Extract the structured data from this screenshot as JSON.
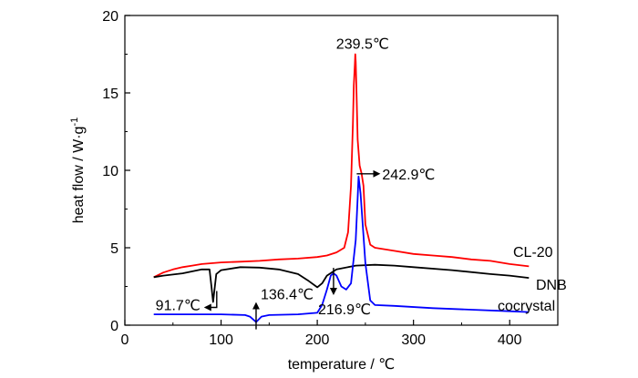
{
  "chart_data": {
    "type": "line",
    "xlabel": "temperature / ℃",
    "ylabel": "heat flow / W·g",
    "ylabel_sup": "-1",
    "xlim": [
      0,
      450
    ],
    "ylim": [
      0,
      20
    ],
    "xticks": [
      0,
      100,
      200,
      300,
      400
    ],
    "yticks": [
      0,
      5,
      10,
      15,
      20
    ],
    "grid": false,
    "series": [
      {
        "name": "CL-20",
        "color": "#ff0000",
        "x": [
          30,
          40,
          50,
          60,
          70,
          80,
          100,
          120,
          140,
          160,
          180,
          200,
          210,
          220,
          228,
          232,
          235,
          237,
          238,
          239,
          239.5,
          240,
          241,
          242,
          244,
          246,
          248,
          250,
          255,
          260,
          280,
          300,
          320,
          340,
          360,
          380,
          400,
          420
        ],
        "y": [
          3.1,
          3.4,
          3.6,
          3.75,
          3.85,
          3.95,
          4.05,
          4.1,
          4.15,
          4.25,
          4.3,
          4.4,
          4.5,
          4.7,
          5.0,
          6.0,
          9.0,
          13.0,
          15.5,
          16.8,
          17.5,
          17.0,
          14.5,
          12.0,
          10.3,
          9.8,
          9.0,
          6.5,
          5.2,
          5.0,
          4.8,
          4.6,
          4.5,
          4.4,
          4.25,
          4.15,
          3.95,
          3.8
        ]
      },
      {
        "name": "DNB",
        "color": "#000000",
        "x": [
          30,
          40,
          60,
          80,
          88,
          90,
          91.7,
          95,
          100,
          120,
          140,
          160,
          180,
          190,
          200,
          205,
          210,
          220,
          240,
          260,
          280,
          300,
          340,
          380,
          400,
          420
        ],
        "y": [
          3.1,
          3.2,
          3.35,
          3.6,
          3.6,
          2.5,
          1.5,
          3.3,
          3.55,
          3.75,
          3.72,
          3.6,
          3.3,
          2.9,
          2.45,
          2.7,
          3.2,
          3.6,
          3.85,
          3.9,
          3.85,
          3.75,
          3.55,
          3.3,
          3.2,
          3.05
        ]
      },
      {
        "name": "cocrystal",
        "color": "#0000ff",
        "x": [
          30,
          60,
          100,
          125,
          130,
          136.4,
          142,
          150,
          180,
          200,
          205,
          210,
          214,
          216.9,
          220,
          225,
          230,
          235,
          240,
          242,
          242.9,
          245,
          250,
          255,
          260,
          280,
          320,
          360,
          400,
          420
        ],
        "y": [
          0.7,
          0.7,
          0.7,
          0.65,
          0.55,
          0.2,
          0.55,
          0.65,
          0.7,
          0.8,
          1.3,
          2.3,
          3.2,
          3.35,
          3.2,
          2.5,
          2.3,
          2.7,
          5.5,
          8.2,
          9.6,
          8.5,
          4.0,
          1.6,
          1.3,
          1.25,
          1.1,
          1.0,
          0.9,
          0.85
        ]
      }
    ],
    "annotations": [
      {
        "text": "239.5℃",
        "x": 239.5,
        "y": 17.5
      },
      {
        "text": "242.9℃",
        "x": 242.9,
        "y": 9.6
      },
      {
        "text": "91.7℃",
        "x": 91.7,
        "y": 1.5
      },
      {
        "text": "136.4℃",
        "x": 136.4,
        "y": 0.2
      },
      {
        "text": "216.9℃",
        "x": 216.9,
        "y": 3.35
      }
    ]
  }
}
